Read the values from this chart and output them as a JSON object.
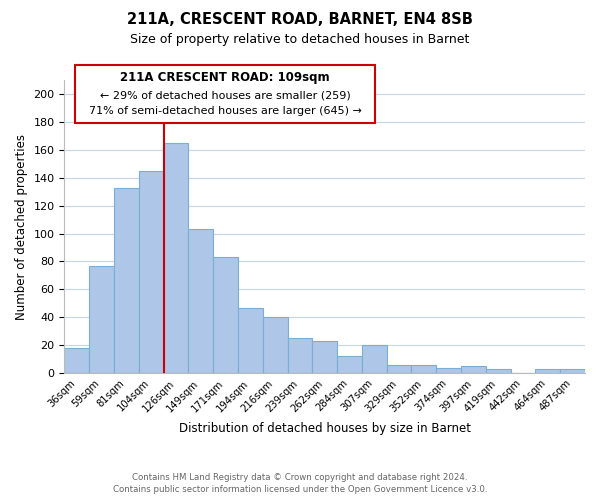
{
  "title": "211A, CRESCENT ROAD, BARNET, EN4 8SB",
  "subtitle": "Size of property relative to detached houses in Barnet",
  "xlabel": "Distribution of detached houses by size in Barnet",
  "ylabel": "Number of detached properties",
  "bar_labels": [
    "36sqm",
    "59sqm",
    "81sqm",
    "104sqm",
    "126sqm",
    "149sqm",
    "171sqm",
    "194sqm",
    "216sqm",
    "239sqm",
    "262sqm",
    "284sqm",
    "307sqm",
    "329sqm",
    "352sqm",
    "374sqm",
    "397sqm",
    "419sqm",
    "442sqm",
    "464sqm",
    "487sqm"
  ],
  "bar_values": [
    18,
    77,
    133,
    145,
    165,
    103,
    83,
    47,
    40,
    25,
    23,
    12,
    20,
    6,
    6,
    4,
    5,
    3,
    0,
    3,
    3
  ],
  "bar_color": "#aec6e8",
  "bar_edge_color": "#7aaed4",
  "vline_x": 3.5,
  "vline_color": "#cc0000",
  "ylim": [
    0,
    210
  ],
  "yticks": [
    0,
    20,
    40,
    60,
    80,
    100,
    120,
    140,
    160,
    180,
    200
  ],
  "annotation_title": "211A CRESCENT ROAD: 109sqm",
  "annotation_line1": "← 29% of detached houses are smaller (259)",
  "annotation_line2": "71% of semi-detached houses are larger (645) →",
  "annotation_box_color": "#ffffff",
  "annotation_box_edge": "#cc0000",
  "footer_line1": "Contains HM Land Registry data © Crown copyright and database right 2024.",
  "footer_line2": "Contains public sector information licensed under the Open Government Licence v3.0.",
  "background_color": "#ffffff",
  "grid_color": "#c8d4e8"
}
